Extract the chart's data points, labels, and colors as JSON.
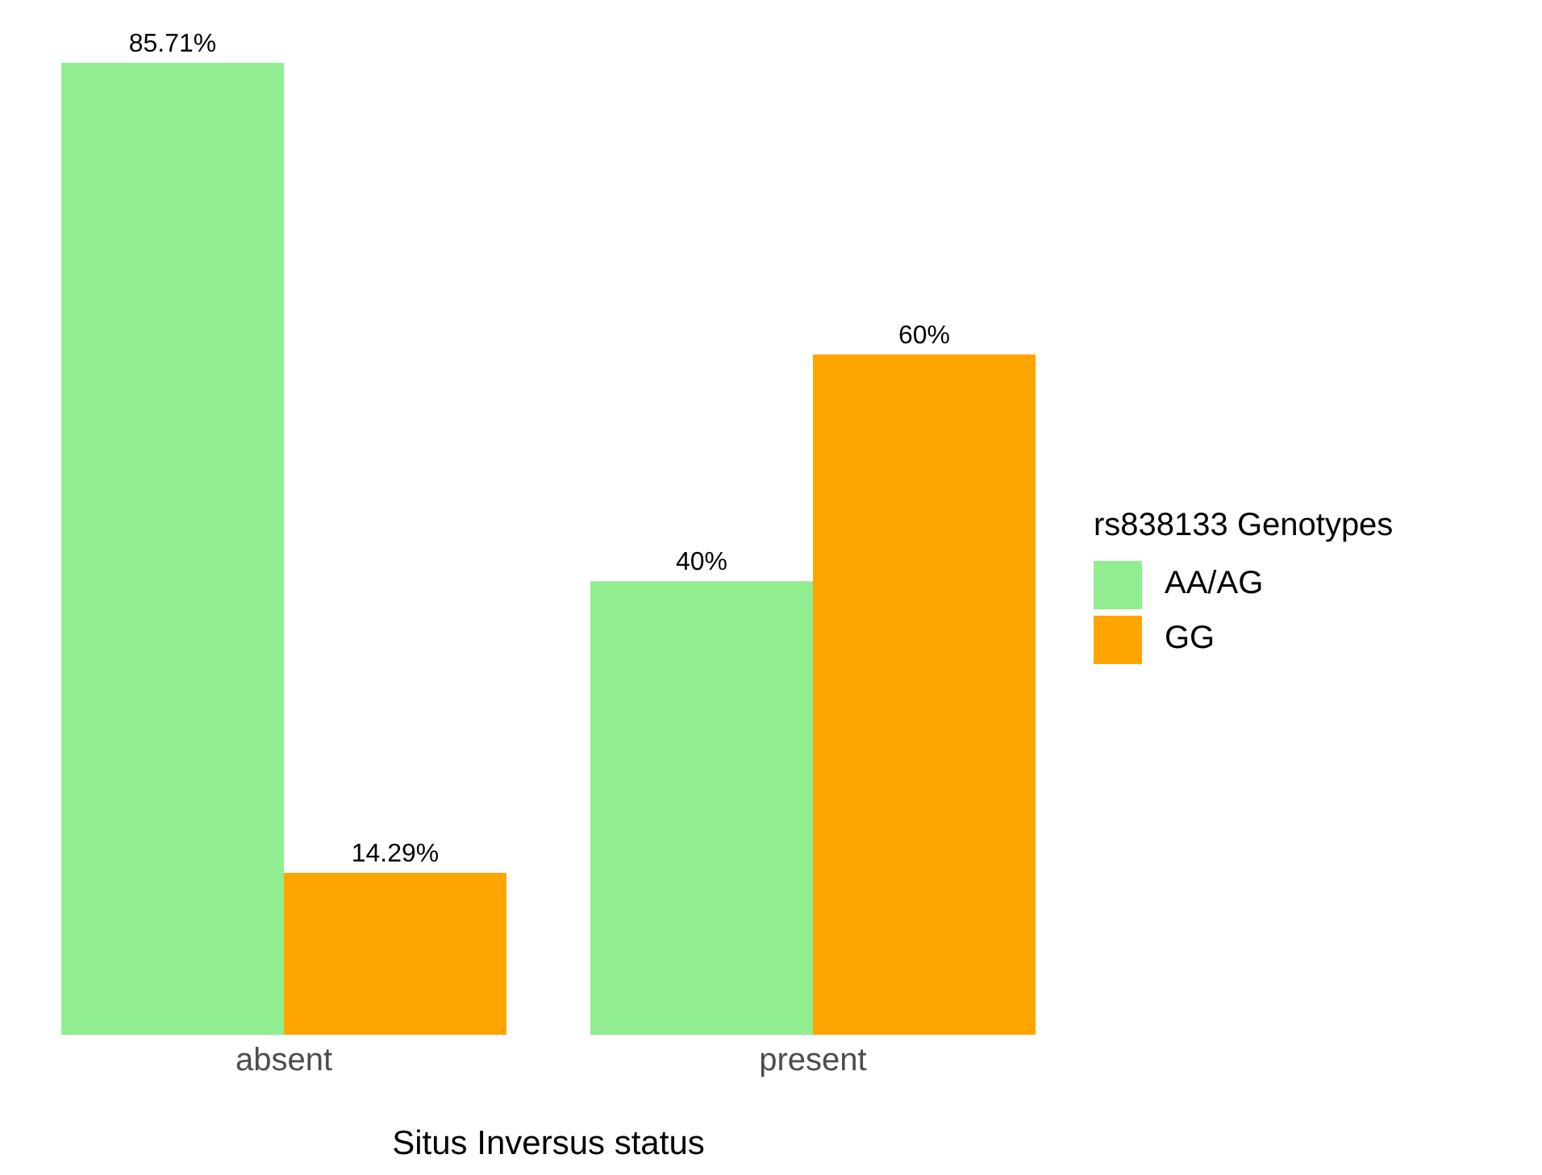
{
  "chart_data": {
    "type": "bar",
    "xlabel": "Situs Inversus status",
    "legend_title": "rs838133 Genotypes",
    "legend": "right",
    "grid": false,
    "categories": [
      "absent",
      "present"
    ],
    "series": [
      {
        "name": "AA/AG",
        "color": "#90ee90",
        "values": [
          85.71,
          40
        ],
        "value_labels": [
          "85.71%",
          "40%"
        ]
      },
      {
        "name": "GG",
        "color": "#ffa500",
        "values": [
          14.29,
          60
        ],
        "value_labels": [
          "14.29%",
          "60%"
        ]
      }
    ]
  }
}
